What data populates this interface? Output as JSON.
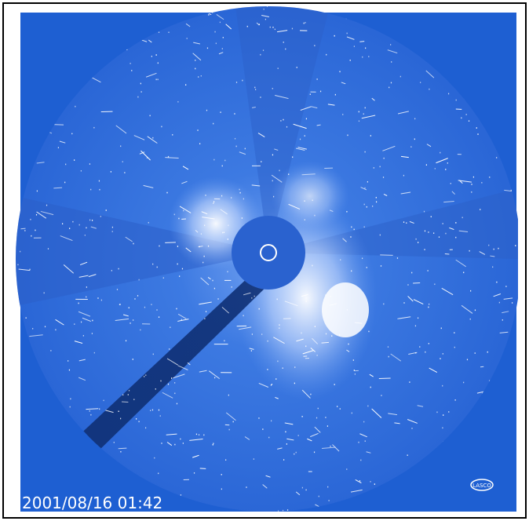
{
  "image": {
    "timestamp": "2001/08/16 01:42",
    "logo": "LASCO"
  }
}
